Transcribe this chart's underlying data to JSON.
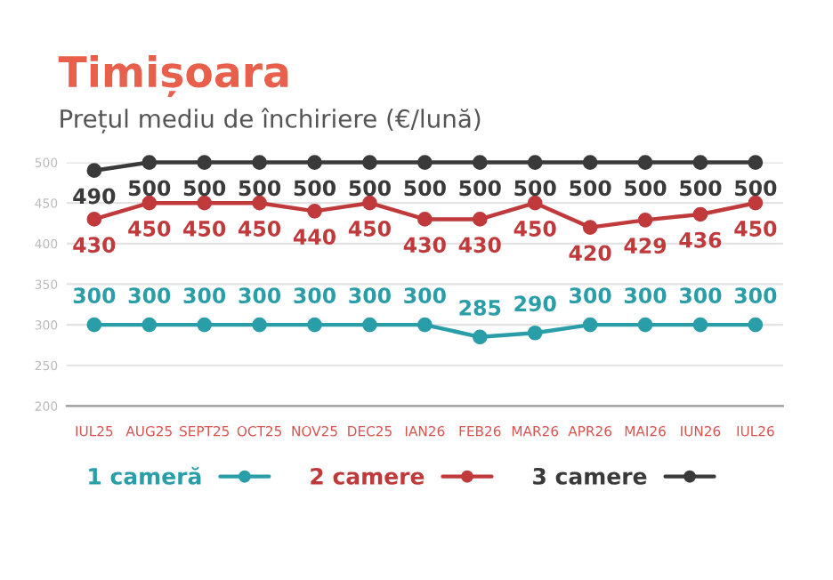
{
  "chart_data": {
    "type": "line",
    "title": "Timișoara",
    "subtitle": "Prețul mediu de închiriere (€/lună)",
    "categories": [
      "IUL25",
      "AUG25",
      "SEPT25",
      "OCT25",
      "NOV25",
      "DEC25",
      "IAN26",
      "FEB26",
      "MAR26",
      "APR26",
      "MAI26",
      "IUN26",
      "IUL26"
    ],
    "series": [
      {
        "name": "1 cameră",
        "color": "#2a9ea8",
        "values": [
          300,
          300,
          300,
          300,
          300,
          300,
          300,
          285,
          290,
          300,
          300,
          300,
          300
        ]
      },
      {
        "name": "2 camere",
        "color": "#c0393b",
        "values": [
          430,
          450,
          450,
          450,
          440,
          450,
          430,
          430,
          450,
          420,
          429,
          436,
          450
        ]
      },
      {
        "name": "3 camere",
        "color": "#3a3a3a",
        "values": [
          490,
          500,
          500,
          500,
          500,
          500,
          500,
          500,
          500,
          500,
          500,
          500,
          500
        ]
      }
    ],
    "ylim": [
      200,
      500
    ],
    "yticks": [
      200,
      250,
      300,
      350,
      400,
      450,
      500
    ],
    "grid": "y",
    "legend": "bottom",
    "marker": "circle",
    "line_style": "solid",
    "data_labels": true
  }
}
